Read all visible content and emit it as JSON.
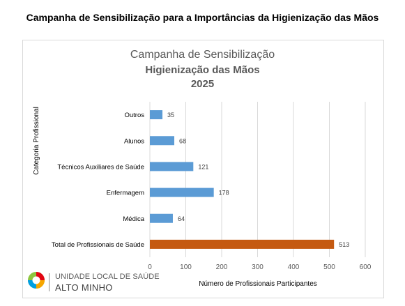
{
  "page": {
    "title": "Campanha de Sensibilização para a Importâncias da Higienização das Mãos"
  },
  "chart_data": {
    "type": "bar",
    "orientation": "horizontal",
    "title_line1": "Campanha de Sensibilização",
    "title_line2": "Higienização das Mãos",
    "title_line3": "2025",
    "xlabel": "Número de Profissionais Participantes",
    "ylabel": "Categoria Profissional",
    "xlim": [
      0,
      600
    ],
    "x_ticks": [
      0,
      100,
      200,
      300,
      400,
      500,
      600
    ],
    "grid": true,
    "categories": [
      "Outros",
      "Alunos",
      "Técnicos Auxiliares de Saúde",
      "Enfermagem",
      "Médica",
      "Total de Profissionais de Saúde"
    ],
    "values": [
      35,
      68,
      121,
      178,
      64,
      513
    ],
    "colors": [
      "#5b9bd5",
      "#5b9bd5",
      "#5b9bd5",
      "#5b9bd5",
      "#5b9bd5",
      "#c55a11"
    ]
  },
  "logo": {
    "line1": "UNIDADE LOCAL DE SAÚDE",
    "line2": "ALTO MINHO"
  }
}
